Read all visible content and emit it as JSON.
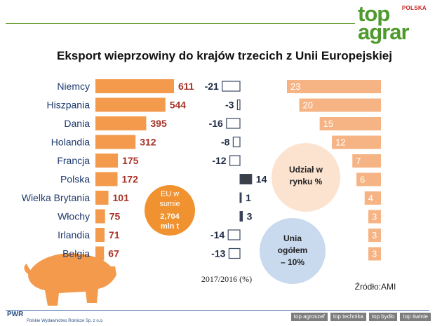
{
  "brand": {
    "line1": "top",
    "line2": "agrar",
    "tag": "POLSKA"
  },
  "title": "Eksport wieprzowiny do krajów trzecich z Unii Europejskiej",
  "eu_total": [
    "EU w",
    "sumie",
    "2,704",
    "mln t"
  ],
  "share_label": [
    "Udział w",
    "rynku %"
  ],
  "union_label": [
    "Unia",
    "ogółem",
    "– 10%"
  ],
  "change_caption": "2017/2016 (%)",
  "source": "Źródło:AMI",
  "publisher": {
    "short": "PWR",
    "full": "Polskie Wydawnictwo Rolnicze Sp. z o.o."
  },
  "footer_tags": [
    "top agroszef",
    "top technika",
    "top bydło",
    "top świnie"
  ],
  "colors": {
    "bar": "#f39a4c",
    "export_value": "#a83226",
    "share_bar": "#f6b485",
    "accent_green": "#4f9a2c",
    "eu_circle": "#f0922f",
    "share_circle": "#fce3d0",
    "union_circle": "#c9d9ee"
  },
  "icons": [
    "pig-icon"
  ],
  "chart_data": [
    {
      "type": "bar",
      "orientation": "horizontal",
      "title": "Eksport wieprzowiny do krajów trzecich z Unii Europejskiej",
      "categories": [
        "Niemcy",
        "Hiszpania",
        "Dania",
        "Holandia",
        "Francja",
        "Polska",
        "Wielka Brytania",
        "Włochy",
        "Irlandia",
        "Belgia"
      ],
      "values": [
        611,
        544,
        395,
        312,
        175,
        172,
        101,
        75,
        71,
        67
      ]
    },
    {
      "type": "bar",
      "orientation": "horizontal",
      "xlabel": "2017/2016 (%)",
      "categories": [
        "Niemcy",
        "Hiszpania",
        "Dania",
        "Holandia",
        "Francja",
        "Polska",
        "Wielka Brytania",
        "Włochy",
        "Irlandia",
        "Belgia"
      ],
      "values": [
        -21,
        -3,
        -16,
        -8,
        -12,
        14,
        1,
        3,
        -14,
        -13
      ]
    },
    {
      "type": "bar",
      "orientation": "horizontal",
      "title": "Udział w rynku %",
      "categories": [
        "Niemcy",
        "Hiszpania",
        "Dania",
        "Holandia",
        "Francja",
        "Polska",
        "Wielka Brytania",
        "Włochy",
        "Irlandia",
        "Belgia"
      ],
      "values": [
        23,
        20,
        15,
        12,
        7,
        6,
        4,
        3,
        3,
        3
      ]
    }
  ]
}
